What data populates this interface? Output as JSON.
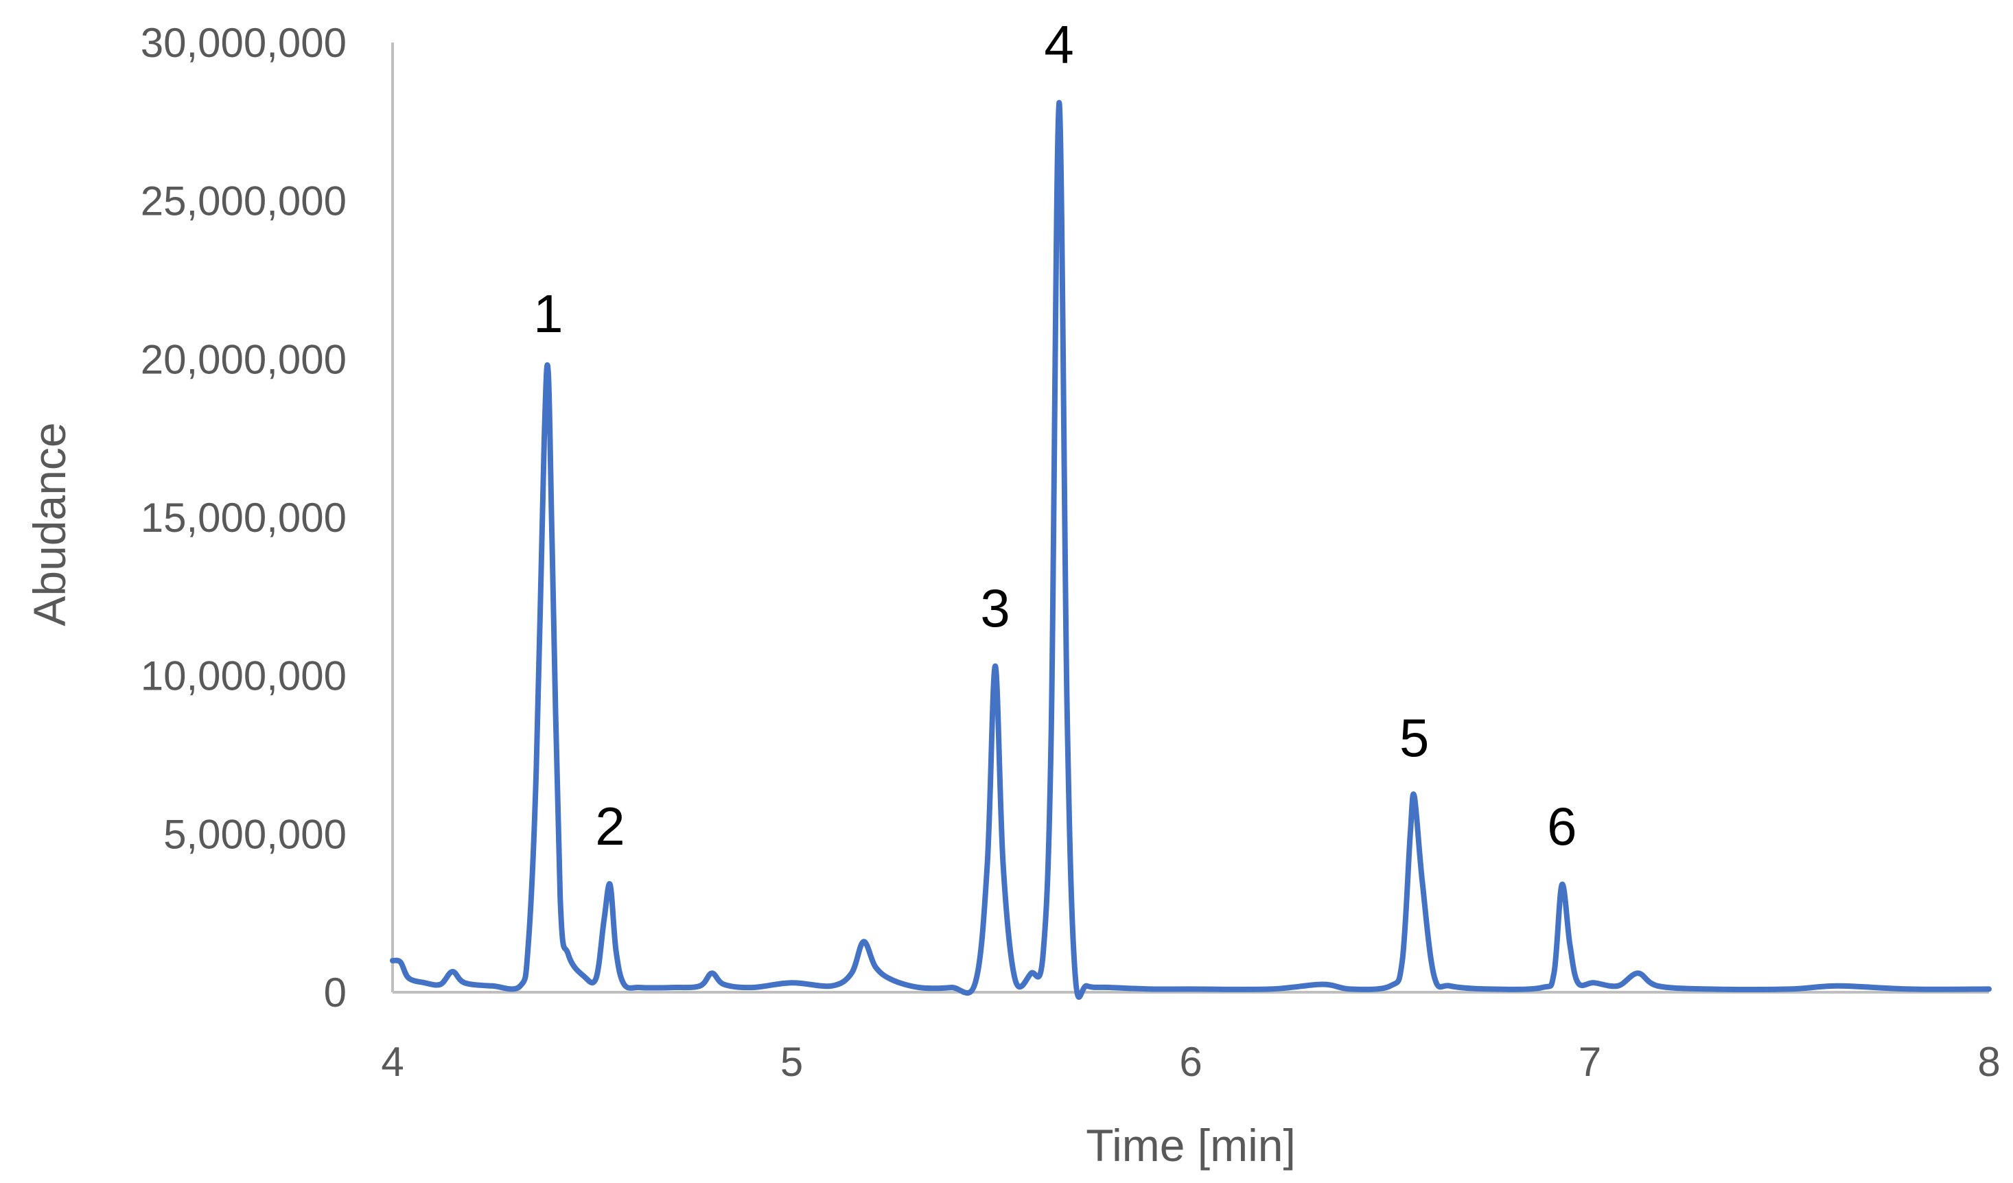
{
  "chart_data": {
    "type": "line",
    "title": "",
    "xlabel": "Time [min]",
    "ylabel": "Abudance",
    "xlim": [
      4,
      8
    ],
    "ylim": [
      0,
      30000000
    ],
    "x_ticks": [
      4,
      5,
      6,
      7,
      8
    ],
    "x_tick_labels": [
      "4",
      "5",
      "6",
      "7",
      "8"
    ],
    "y_ticks": [
      0,
      5000000,
      10000000,
      15000000,
      20000000,
      25000000,
      30000000
    ],
    "y_tick_labels": [
      "0",
      "5,000,000",
      "10,000,000",
      "15,000,000",
      "20,000,000",
      "25,000,000",
      "30,000,000"
    ],
    "grid": false,
    "legend": "none",
    "line_color": "#4472C4",
    "series": [
      {
        "x": [
          4.0,
          4.02,
          4.04,
          4.08,
          4.12,
          4.15,
          4.18,
          4.25,
          4.32,
          4.34,
          4.36,
          4.38,
          4.39,
          4.4,
          4.42,
          4.44,
          4.48,
          4.51,
          4.53,
          4.545,
          4.56,
          4.58,
          4.62,
          4.7,
          4.77,
          4.8,
          4.83,
          4.9,
          5.0,
          5.1,
          5.15,
          5.18,
          5.21,
          5.25,
          5.32,
          5.4,
          5.46,
          5.49,
          5.51,
          5.53,
          5.56,
          5.6,
          5.63,
          5.65,
          5.67,
          5.69,
          5.71,
          5.74,
          5.8,
          5.9,
          6.0,
          6.2,
          6.33,
          6.4,
          6.5,
          6.53,
          6.55,
          6.56,
          6.58,
          6.61,
          6.65,
          6.75,
          6.88,
          6.91,
          6.93,
          6.95,
          6.97,
          7.01,
          7.07,
          7.12,
          7.17,
          7.3,
          7.5,
          7.62,
          7.8,
          8.0
        ],
        "y": [
          1000000,
          950000,
          450000,
          300000,
          250000,
          650000,
          300000,
          200000,
          200000,
          1500000,
          7000000,
          17500000,
          19600000,
          14000000,
          3000000,
          1200000,
          500000,
          450000,
          2300000,
          3400000,
          1300000,
          250000,
          150000,
          150000,
          200000,
          600000,
          250000,
          150000,
          300000,
          200000,
          600000,
          1600000,
          800000,
          400000,
          150000,
          150000,
          300000,
          4000000,
          10300000,
          4000000,
          400000,
          600000,
          1200000,
          8000000,
          28100000,
          9000000,
          600000,
          200000,
          150000,
          100000,
          100000,
          100000,
          250000,
          100000,
          200000,
          1000000,
          5000000,
          6200000,
          3500000,
          500000,
          200000,
          100000,
          150000,
          600000,
          3400000,
          1500000,
          300000,
          300000,
          200000,
          600000,
          200000,
          100000,
          100000,
          200000,
          100000,
          100000
        ]
      }
    ],
    "annotations": [
      {
        "text": "1",
        "x": 4.39,
        "y": 19600000
      },
      {
        "text": "2",
        "x": 4.545,
        "y": 3400000
      },
      {
        "text": "3",
        "x": 5.51,
        "y": 10300000
      },
      {
        "text": "4",
        "x": 5.67,
        "y": 28100000
      },
      {
        "text": "5",
        "x": 6.56,
        "y": 6200000
      },
      {
        "text": "6",
        "x": 6.93,
        "y": 3400000
      }
    ]
  }
}
